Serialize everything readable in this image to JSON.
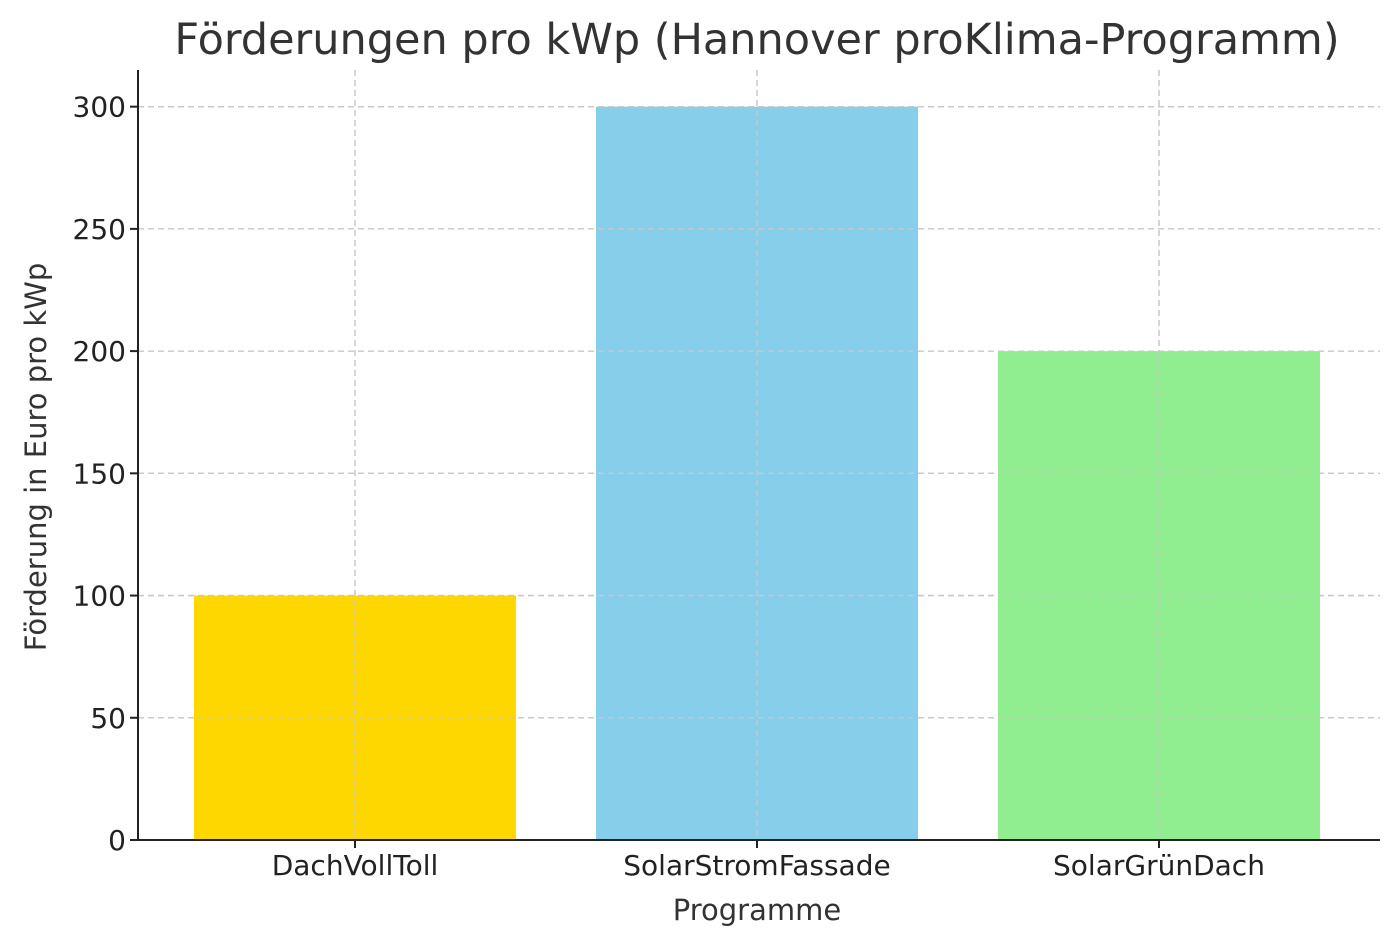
{
  "chart_data": {
    "type": "bar",
    "title": "Förderungen pro kWp (Hannover proKlima-Programm)",
    "xlabel": "Programme",
    "ylabel": "Förderung in Euro pro kWp",
    "categories": [
      "DachVollToll",
      "SolarStromFassade",
      "SolarGrünDach"
    ],
    "values": [
      100,
      300,
      200
    ],
    "colors": [
      "#FFD700",
      "#87CEEB",
      "#90EE90"
    ],
    "ylim": [
      0,
      315
    ],
    "yticks": [
      0,
      50,
      100,
      150,
      200,
      250,
      300
    ],
    "grid": true,
    "legend": "none"
  }
}
